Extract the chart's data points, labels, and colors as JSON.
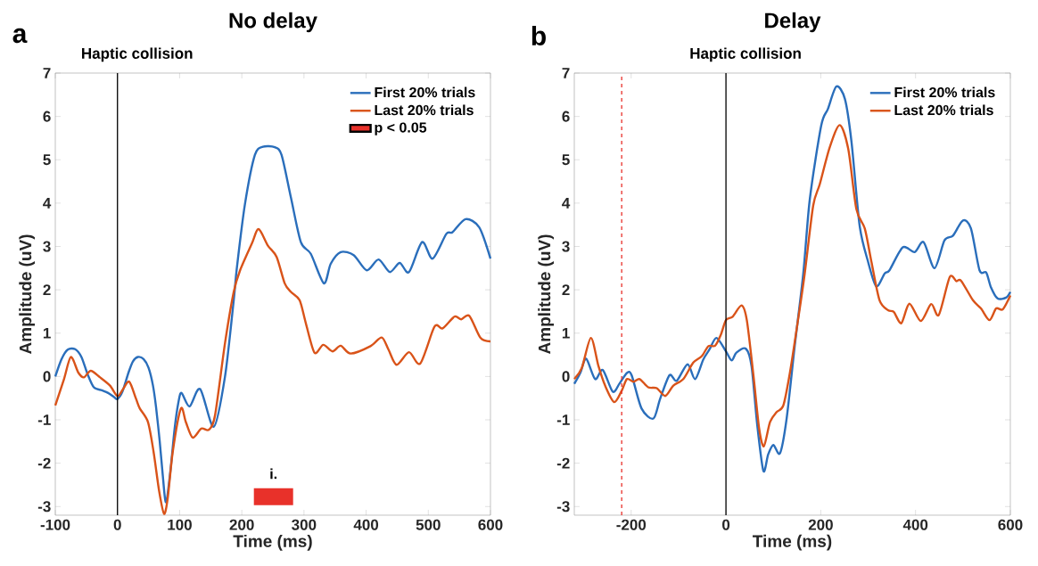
{
  "chart_data": [
    {
      "type": "line",
      "title": "No delay",
      "xlabel": "Time (ms)",
      "ylabel": "Amplitude (uV)",
      "xlim": [
        -100,
        600
      ],
      "ylim": [
        -3.2,
        7
      ],
      "xticks": [
        -100,
        0,
        100,
        200,
        300,
        400,
        500,
        600
      ],
      "yticks": [
        -3,
        -2,
        -1,
        0,
        1,
        2,
        3,
        4,
        5,
        6,
        7
      ],
      "legend": "top right",
      "series": [
        {
          "name": "First 20% trials",
          "color": "#2a6ebb",
          "x": [
            -100,
            -90,
            -80,
            -68,
            -58,
            -48,
            -38,
            -25,
            -15,
            -5,
            0,
            8,
            18,
            25,
            33,
            42,
            50,
            57,
            62,
            68,
            73,
            78,
            85,
            92,
            98,
            103,
            116,
            133,
            155,
            173,
            187,
            192,
            205,
            221,
            234,
            253,
            264,
            279,
            295,
            311,
            332,
            343,
            359,
            380,
            401,
            420,
            438,
            454,
            469,
            490,
            507,
            529,
            539,
            560,
            582,
            600
          ],
          "values": [
            0.0,
            0.4,
            0.62,
            0.63,
            0.45,
            0.05,
            -0.25,
            -0.32,
            -0.38,
            -0.48,
            -0.52,
            -0.35,
            0.1,
            0.35,
            0.45,
            0.4,
            0.2,
            -0.2,
            -0.7,
            -1.5,
            -2.3,
            -2.9,
            -2.2,
            -1.2,
            -0.6,
            -0.38,
            -0.69,
            -0.29,
            -1.16,
            0.0,
            1.76,
            2.5,
            3.97,
            5.11,
            5.3,
            5.29,
            5.11,
            4.13,
            3.1,
            2.83,
            2.15,
            2.6,
            2.87,
            2.8,
            2.45,
            2.7,
            2.41,
            2.62,
            2.41,
            3.1,
            2.72,
            3.29,
            3.33,
            3.63,
            3.44,
            2.72
          ]
        },
        {
          "name": "Last 20% trials",
          "color": "#d95319",
          "x": [
            -100,
            -86,
            -75,
            -63,
            -54,
            -43,
            -28,
            -12,
            0,
            9,
            19,
            30,
            36,
            49,
            58,
            67,
            75,
            81,
            89,
            102,
            110,
            121,
            135,
            147,
            157,
            173,
            187,
            197,
            216,
            227,
            242,
            256,
            269,
            279,
            293,
            303,
            317,
            331,
            346,
            359,
            375,
            407,
            425,
            436,
            449,
            469,
            487,
            510,
            523,
            542,
            553,
            566,
            584,
            600
          ],
          "values": [
            -0.67,
            -0.06,
            0.45,
            0.09,
            -0.02,
            0.13,
            -0.02,
            -0.21,
            -0.45,
            -0.29,
            -0.12,
            -0.52,
            -0.74,
            -1.05,
            -1.73,
            -2.64,
            -3.17,
            -2.79,
            -1.73,
            -0.74,
            -1.05,
            -1.41,
            -1.2,
            -1.23,
            -0.89,
            0.77,
            1.95,
            2.44,
            3.06,
            3.4,
            3.02,
            2.76,
            2.15,
            1.95,
            1.76,
            1.23,
            0.55,
            0.73,
            0.58,
            0.71,
            0.53,
            0.7,
            0.9,
            0.62,
            0.27,
            0.56,
            0.3,
            1.15,
            1.11,
            1.38,
            1.32,
            1.4,
            0.89,
            0.81
          ]
        },
        {
          "type": "bar",
          "name": "p < 0.05",
          "color": "#e8312a",
          "x": [
            251
          ],
          "values": [
            0.39
          ],
          "base": [
            -2.97
          ]
        }
      ],
      "ref_lines": [
        {
          "axis": "x",
          "value": 0,
          "label": "Haptic collision",
          "color": "#000000",
          "line_style": "solid"
        }
      ],
      "annotations": [
        "a",
        {
          "text": "i.",
          "x": 251,
          "y": -2.58
        }
      ]
    },
    {
      "type": "line",
      "title": "Delay",
      "xlabel": "Time (ms)",
      "ylabel": "Amplitude (uV)",
      "xlim": [
        -320,
        600
      ],
      "ylim": [
        -3.2,
        7
      ],
      "xticks": [
        -200,
        0,
        200,
        400,
        600
      ],
      "yticks": [
        -3,
        -2,
        -1,
        0,
        1,
        2,
        3,
        4,
        5,
        6,
        7
      ],
      "legend": "top right",
      "series": [
        {
          "name": "First 20% trials",
          "color": "#2a6ebb",
          "x": [
            -320,
            -307,
            -295,
            -276,
            -260,
            -239,
            -225,
            -209,
            -199,
            -178,
            -153,
            -139,
            -119,
            -104,
            -81,
            -65,
            -48,
            -35,
            -20,
            0,
            12,
            22,
            42,
            54,
            66,
            79,
            89,
            100,
            114,
            128,
            145,
            163,
            177,
            201,
            215,
            233,
            251,
            265,
            282,
            300,
            317,
            335,
            345,
            373,
            398,
            417,
            440,
            461,
            479,
            500,
            517,
            535,
            549,
            559,
            573,
            591,
            600
          ],
          "values": [
            -0.17,
            0.09,
            0.41,
            -0.06,
            0.15,
            -0.35,
            -0.17,
            0.08,
            0.03,
            -0.74,
            -0.97,
            -0.52,
            0.03,
            -0.1,
            0.28,
            -0.06,
            0.39,
            0.62,
            0.89,
            0.58,
            0.37,
            0.55,
            0.64,
            0.24,
            -1.12,
            -2.18,
            -1.8,
            -1.58,
            -1.77,
            -0.97,
            0.7,
            2.36,
            4.1,
            5.79,
            6.17,
            6.69,
            6.4,
            5.4,
            3.48,
            2.64,
            2.08,
            2.38,
            2.45,
            2.98,
            2.87,
            3.1,
            2.5,
            3.14,
            3.25,
            3.6,
            3.41,
            2.45,
            2.4,
            2.06,
            1.8,
            1.82,
            1.95
          ]
        },
        {
          "name": "Last 20% trials",
          "color": "#d95319",
          "x": [
            -320,
            -304,
            -285,
            -269,
            -255,
            -236,
            -220,
            -209,
            -195,
            -182,
            -164,
            -146,
            -128,
            -111,
            -90,
            -69,
            -51,
            -37,
            -23,
            -11,
            0,
            14,
            33,
            44,
            58,
            70,
            80,
            93,
            107,
            121,
            135,
            152,
            166,
            184,
            198,
            219,
            240,
            258,
            275,
            293,
            307,
            324,
            342,
            354,
            370,
            387,
            411,
            433,
            449,
            472,
            486,
            496,
            521,
            538,
            556,
            570,
            584,
            600
          ],
          "values": [
            -0.06,
            0.2,
            0.89,
            0.24,
            -0.21,
            -0.59,
            -0.33,
            -0.06,
            -0.12,
            -0.06,
            -0.25,
            -0.27,
            -0.45,
            -0.21,
            -0.06,
            0.32,
            0.47,
            0.7,
            0.71,
            0.96,
            1.3,
            1.38,
            1.64,
            1.3,
            0.02,
            -1.2,
            -1.61,
            -1.05,
            -0.82,
            -0.67,
            0.09,
            1.3,
            2.36,
            3.94,
            4.44,
            5.29,
            5.8,
            5.25,
            3.87,
            3.41,
            2.64,
            1.76,
            1.53,
            1.49,
            1.23,
            1.68,
            1.28,
            1.67,
            1.42,
            2.29,
            2.2,
            2.21,
            1.76,
            1.57,
            1.3,
            1.57,
            1.55,
            1.87
          ]
        }
      ],
      "ref_lines": [
        {
          "axis": "x",
          "value": 0,
          "label": "Haptic collision",
          "color": "#000000",
          "line_style": "solid"
        },
        {
          "axis": "x",
          "value": -220,
          "color": "#e8312a",
          "line_style": "dashed"
        }
      ],
      "annotations": [
        "b"
      ]
    }
  ]
}
